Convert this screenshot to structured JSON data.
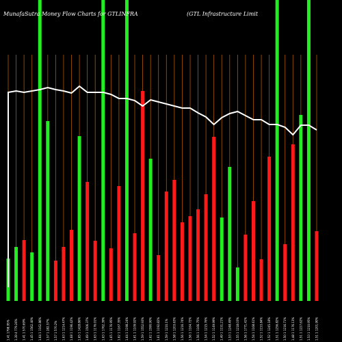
{
  "chart_data": {
    "type": "bar",
    "title_left": "MunafaSutra  Money Flow  Charts for GTLINFRA",
    "title_right": "(GTL  Infrastructure   Limit",
    "colors": {
      "background": "#000000",
      "up": "#22ee22",
      "down": "#ff1a1a",
      "grid": "#b05a00",
      "line": "#ffffff"
    },
    "bars": [
      {
        "label": "1.41 1798.95%",
        "color": "up",
        "value": 62,
        "tall": false
      },
      {
        "label": "1.39 4 779.26%",
        "color": "up",
        "value": 79,
        "tall": false
      },
      {
        "label": "1.41 1 570.69%",
        "color": "down",
        "value": 89,
        "tall": false
      },
      {
        "label": "1.45 1 1562.40%",
        "color": "up",
        "value": 71,
        "tall": false
      },
      {
        "label": "1.64 1 1162.86%",
        "color": "up",
        "value": 0,
        "tall": true
      },
      {
        "label": "1.57 1 282.57%",
        "color": "up",
        "value": 263,
        "tall": false
      },
      {
        "label": "1.57 1 570.2%",
        "color": "down",
        "value": 59,
        "tall": false
      },
      {
        "label": "1.63 1 1214.47%",
        "color": "down",
        "value": 79,
        "tall": false
      },
      {
        "label": "1.68 1 1196.42%",
        "color": "down",
        "value": 104,
        "tall": false
      },
      {
        "label": "1.65 1 1428.86%",
        "color": "up",
        "value": 241,
        "tall": false
      },
      {
        "label": "1.69 1 1506.37%",
        "color": "down",
        "value": 174,
        "tall": false
      },
      {
        "label": "1.63 1 1176.01%",
        "color": "down",
        "value": 88,
        "tall": false
      },
      {
        "label": "1.63 1 1762.39%",
        "color": "up",
        "value": 0,
        "tall": true
      },
      {
        "label": "1.65 1 1176.95%",
        "color": "down",
        "value": 77,
        "tall": false
      },
      {
        "label": "1.62 1 1167.35%",
        "color": "down",
        "value": 168,
        "tall": false
      },
      {
        "label": "1.64 1 1198.24%",
        "color": "up",
        "value": 0,
        "tall": true
      },
      {
        "label": "1.61 1 1109.92%",
        "color": "down",
        "value": 99,
        "tall": false
      },
      {
        "label": "1.59 1 1552.93%",
        "color": "down",
        "value": 307,
        "tall": false
      },
      {
        "label": "1.62 1 1590.90%",
        "color": "up",
        "value": 208,
        "tall": false
      },
      {
        "label": "1.61 1 1192.82%",
        "color": "down",
        "value": 67,
        "tall": false
      },
      {
        "label": "1.59 1 1210.1%",
        "color": "down",
        "value": 160,
        "tall": false
      },
      {
        "label": "1.58 1 1203.63%",
        "color": "down",
        "value": 177,
        "tall": false
      },
      {
        "label": "1.56 1 1216.74%",
        "color": "down",
        "value": 115,
        "tall": false
      },
      {
        "label": "1.56 1 1164.72%",
        "color": "down",
        "value": 124,
        "tall": false
      },
      {
        "label": "1.56 1 1166.75%",
        "color": "down",
        "value": 134,
        "tall": false
      },
      {
        "label": "1.54 1 1215.76%",
        "color": "down",
        "value": 156,
        "tall": false
      },
      {
        "label": "1.52 1 1149.99%",
        "color": "down",
        "value": 240,
        "tall": false
      },
      {
        "label": "1.49 1 1151.21%",
        "color": "up",
        "value": 122,
        "tall": false
      },
      {
        "label": "1.53 1 1248.49%",
        "color": "up",
        "value": 196,
        "tall": false
      },
      {
        "label": "1.55 1 1218.03%",
        "color": "up",
        "value": 49,
        "tall": false
      },
      {
        "label": "1.56 1 1771.41%",
        "color": "down",
        "value": 97,
        "tall": false
      },
      {
        "label": "1.54 1 1168.61%",
        "color": "down",
        "value": 146,
        "tall": false
      },
      {
        "label": "1.52 1 1153.84%",
        "color": "down",
        "value": 61,
        "tall": false
      },
      {
        "label": "1.52 1 1245.18%",
        "color": "down",
        "value": 211,
        "tall": false
      },
      {
        "label": "1.51 1 1256.82%",
        "color": "up",
        "value": 0,
        "tall": true
      },
      {
        "label": "1.50 1 1216.71%",
        "color": "down",
        "value": 83,
        "tall": false
      },
      {
        "label": "1.48 1 1176.13%",
        "color": "down",
        "value": 229,
        "tall": false
      },
      {
        "label": "1.51 1 1227.62%",
        "color": "up",
        "value": 272,
        "tall": false
      },
      {
        "label": "1.53 1 1210.95%",
        "color": "up",
        "value": 0,
        "tall": true
      },
      {
        "label": "1.51 1 1201.90%",
        "color": "down",
        "value": 102,
        "tall": false
      }
    ],
    "line": [
      305,
      307,
      305,
      307,
      309,
      312,
      309,
      307,
      304,
      314,
      305,
      305,
      305,
      302,
      296,
      296,
      293,
      285,
      294,
      291,
      288,
      285,
      282,
      282,
      275,
      269,
      258,
      268,
      274,
      277,
      271,
      265,
      265,
      258,
      258,
      254,
      243,
      257,
      257,
      250
    ]
  }
}
